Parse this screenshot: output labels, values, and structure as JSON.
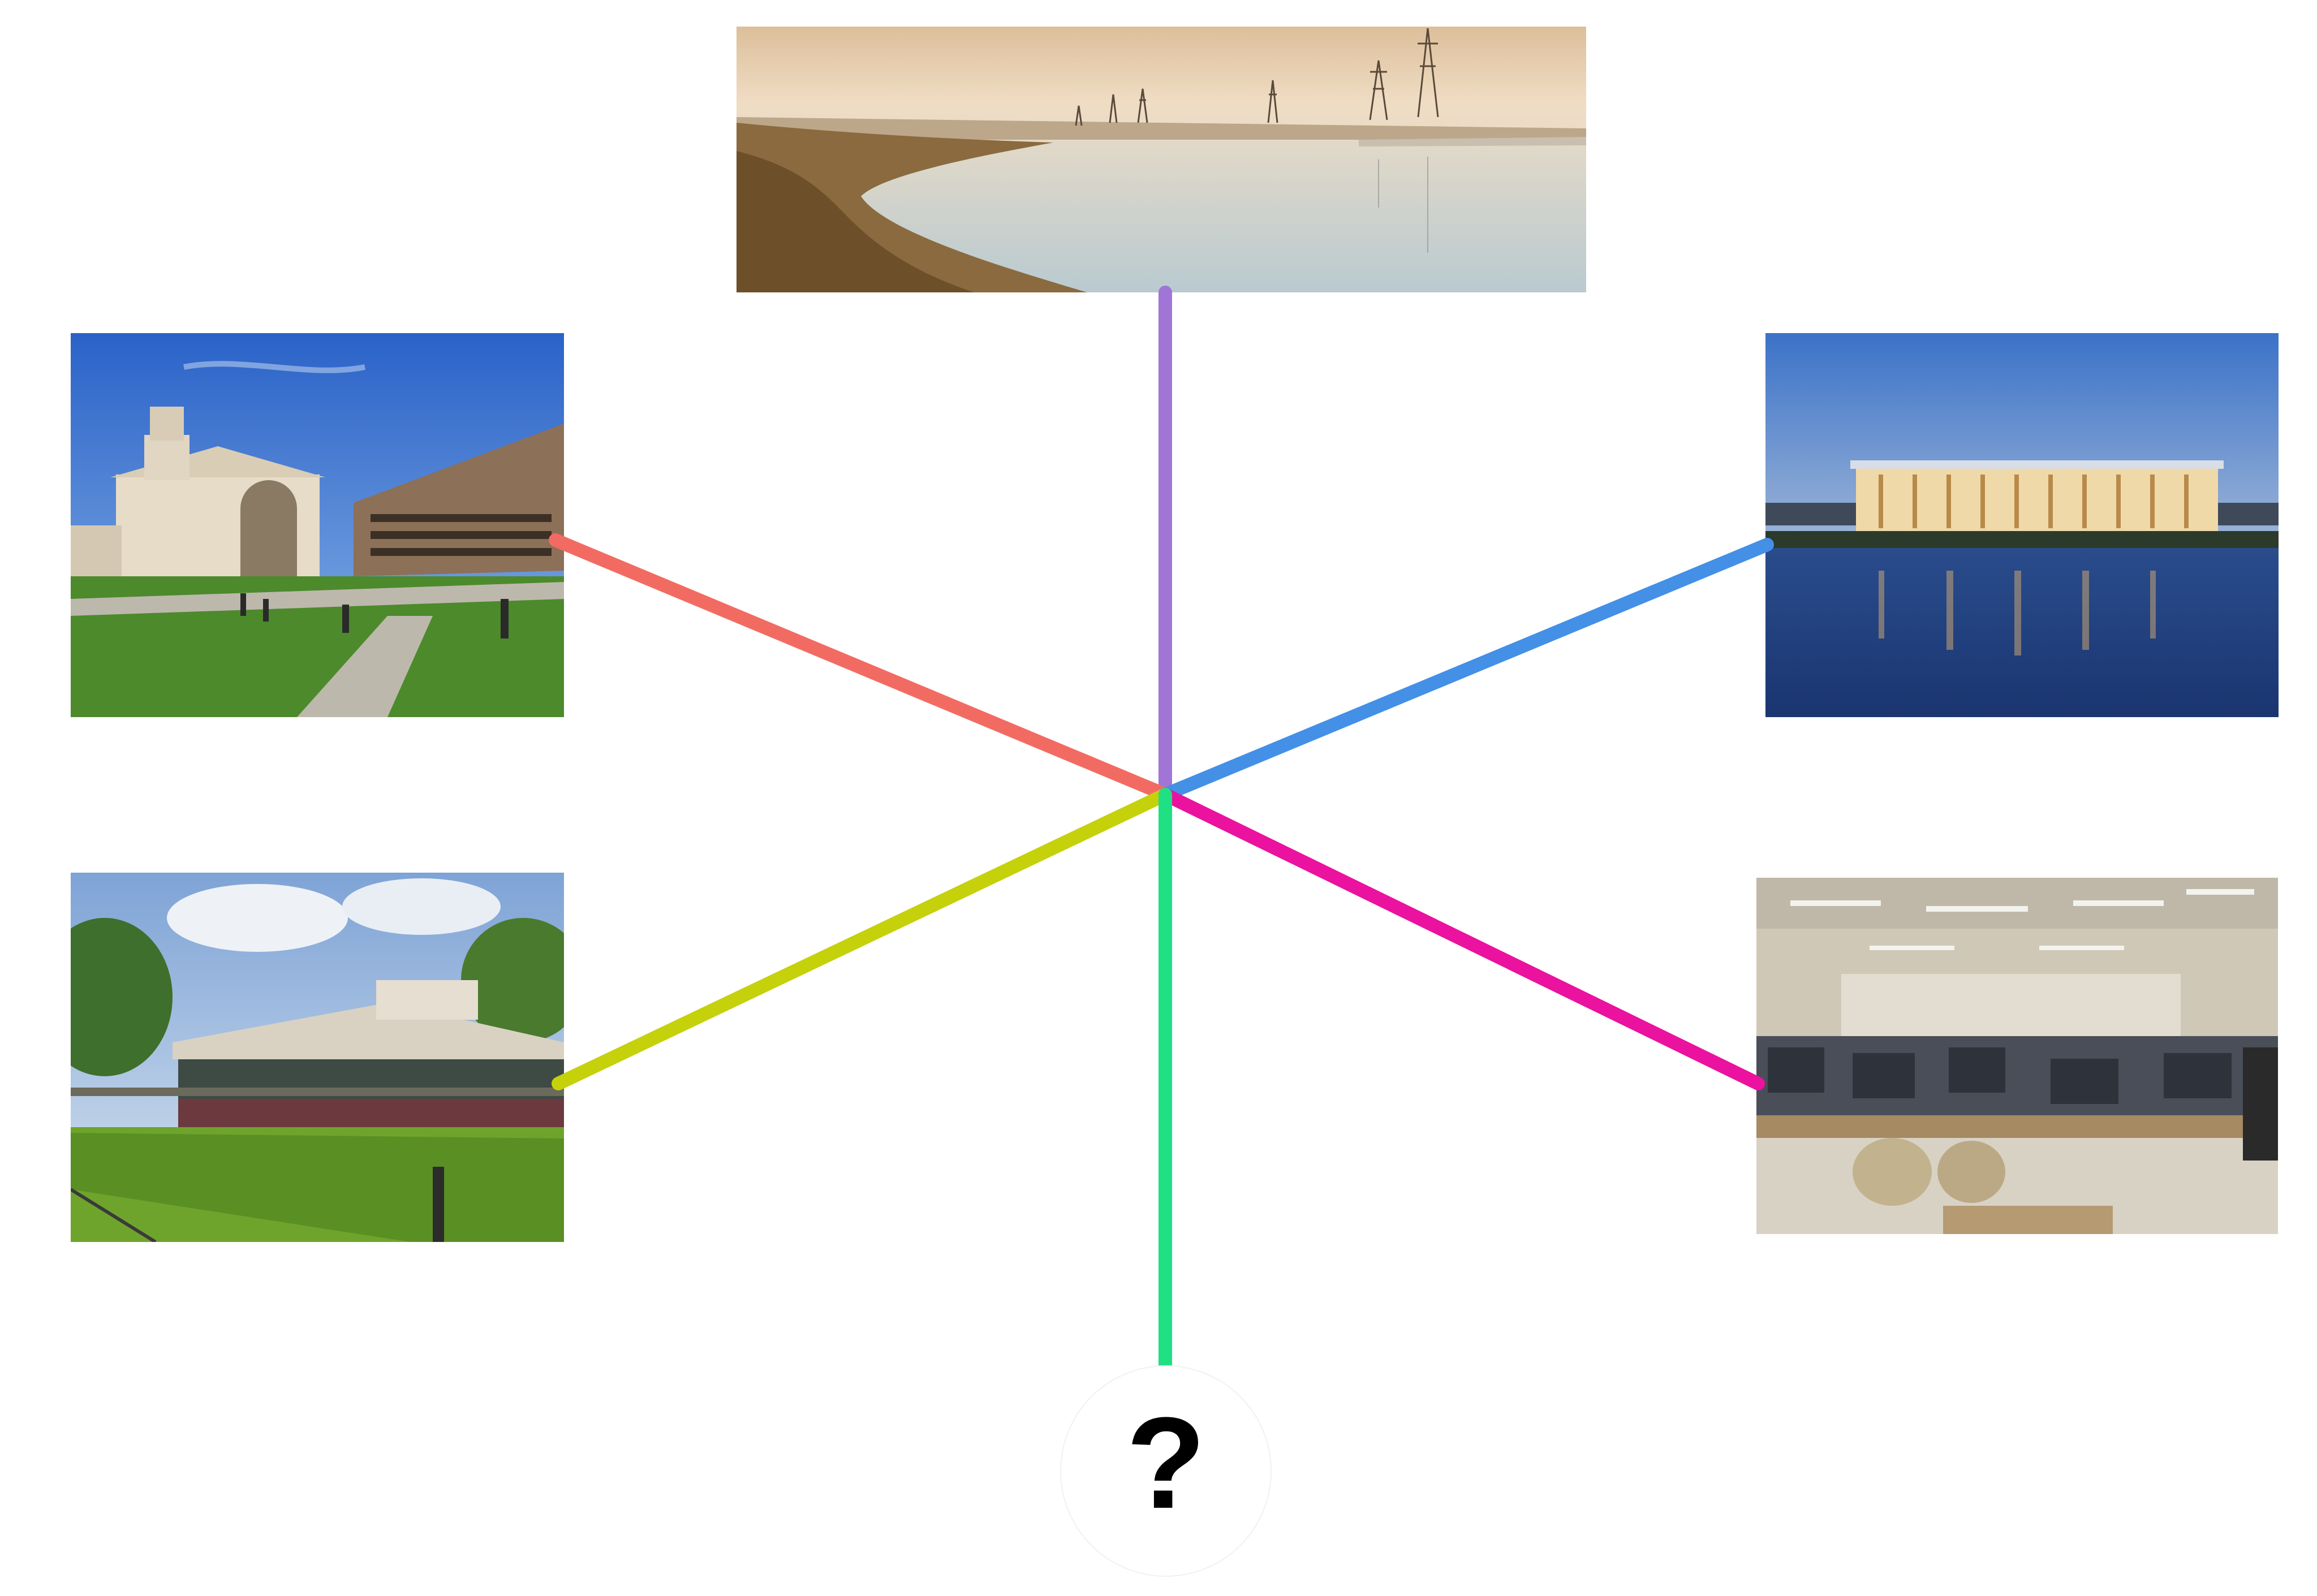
{
  "diagram": {
    "center_label": "?",
    "nodes": [
      {
        "id": "top",
        "description_icon": "salt-marsh-power-lines-photo",
        "connector_color": "#a175d6"
      },
      {
        "id": "upper-left",
        "description_icon": "campus-library-quad-photo",
        "connector_color": "#f26b62"
      },
      {
        "id": "upper-right",
        "description_icon": "riverside-building-dusk-photo",
        "connector_color": "#4390e6"
      },
      {
        "id": "lower-left",
        "description_icon": "garden-pavilion-lawn-photo",
        "connector_color": "#c5d10a"
      },
      {
        "id": "lower-right",
        "description_icon": "computer-lab-interior-photo",
        "connector_color": "#ea129f"
      },
      {
        "id": "bottom",
        "description_icon": "question-mark-node",
        "connector_color": "#1fe083"
      }
    ]
  }
}
